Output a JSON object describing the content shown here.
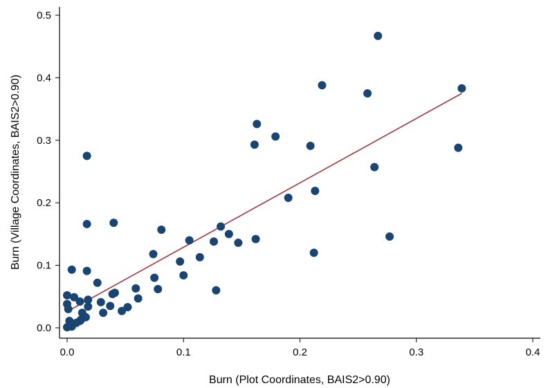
{
  "chart_data": {
    "type": "scatter",
    "title": "",
    "xlabel": "Burn (Plot Coordinates, BAIS2>0.90)",
    "ylabel": "Burn (Village Coordinates, BAIS2>0.90)",
    "xlim": [
      0,
      0.4
    ],
    "ylim": [
      0,
      0.5
    ],
    "xticks": [
      "0.0",
      "0.1",
      "0.2",
      "0.3",
      "0.4"
    ],
    "yticks": [
      "0.0",
      "0.1",
      "0.2",
      "0.3",
      "0.4",
      "0.5"
    ],
    "grid": false,
    "point_color": "#1a4472",
    "line_color": "#a0393d",
    "points": [
      [
        0.267,
        0.467
      ],
      [
        0.219,
        0.388
      ],
      [
        0.258,
        0.375
      ],
      [
        0.339,
        0.383
      ],
      [
        0.163,
        0.326
      ],
      [
        0.179,
        0.306
      ],
      [
        0.161,
        0.293
      ],
      [
        0.209,
        0.291
      ],
      [
        0.336,
        0.288
      ],
      [
        0.017,
        0.275
      ],
      [
        0.264,
        0.257
      ],
      [
        0.213,
        0.219
      ],
      [
        0.19,
        0.208
      ],
      [
        0.017,
        0.166
      ],
      [
        0.04,
        0.168
      ],
      [
        0.081,
        0.157
      ],
      [
        0.132,
        0.162
      ],
      [
        0.139,
        0.15
      ],
      [
        0.105,
        0.14
      ],
      [
        0.126,
        0.138
      ],
      [
        0.147,
        0.136
      ],
      [
        0.162,
        0.142
      ],
      [
        0.277,
        0.146
      ],
      [
        0.212,
        0.12
      ],
      [
        0.074,
        0.118
      ],
      [
        0.114,
        0.113
      ],
      [
        0.097,
        0.106
      ],
      [
        0.004,
        0.093
      ],
      [
        0.017,
        0.091
      ],
      [
        0.075,
        0.08
      ],
      [
        0.1,
        0.084
      ],
      [
        0.026,
        0.072
      ],
      [
        0.128,
        0.06
      ],
      [
        0.059,
        0.063
      ],
      [
        0.078,
        0.062
      ],
      [
        0.041,
        0.056
      ],
      [
        0.039,
        0.054
      ],
      [
        0.061,
        0.047
      ],
      [
        0.0,
        0.052
      ],
      [
        0.006,
        0.049
      ],
      [
        0.011,
        0.042
      ],
      [
        0.018,
        0.045
      ],
      [
        0.0,
        0.038
      ],
      [
        0.001,
        0.03
      ],
      [
        0.029,
        0.041
      ],
      [
        0.037,
        0.035
      ],
      [
        0.052,
        0.033
      ],
      [
        0.047,
        0.027
      ],
      [
        0.031,
        0.024
      ],
      [
        0.018,
        0.034
      ],
      [
        0.013,
        0.024
      ],
      [
        0.016,
        0.017
      ],
      [
        0.011,
        0.011
      ],
      [
        0.002,
        0.011
      ],
      [
        0.005,
        0.006
      ],
      [
        0.0,
        0.001
      ],
      [
        0.008,
        0.008
      ],
      [
        0.012,
        0.013
      ],
      [
        0.004,
        0.002
      ]
    ],
    "fit_line": {
      "x": [
        0.0,
        0.339
      ],
      "y": [
        0.026,
        0.375
      ]
    }
  }
}
